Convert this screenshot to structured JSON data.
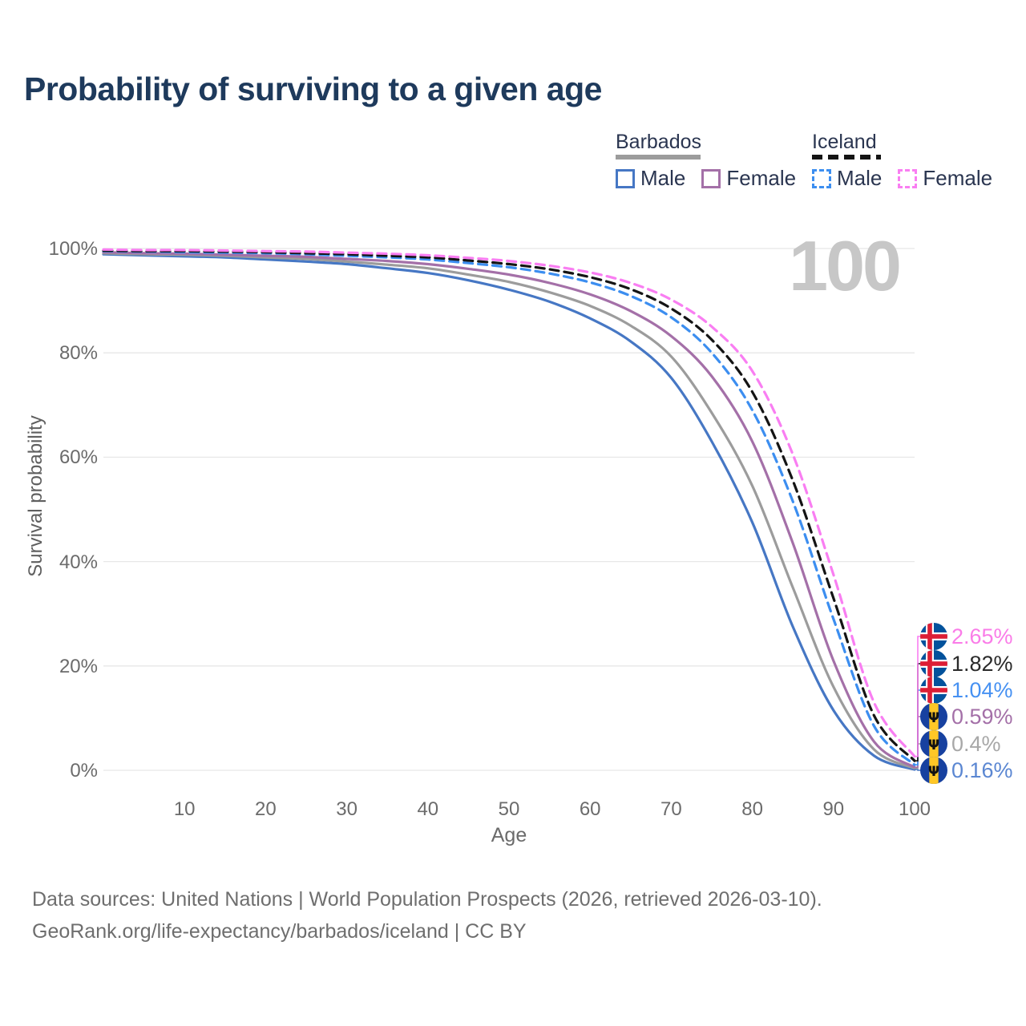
{
  "title": "Probability of surviving to a given age",
  "watermark_age": "100",
  "legend": {
    "groups": [
      {
        "label": "Barbados",
        "series_style": "solid",
        "underline_series_index": 1,
        "items": [
          {
            "label": "Male",
            "series_index": 0
          },
          {
            "label": "Female",
            "series_index": 2
          }
        ]
      },
      {
        "label": "Iceland",
        "series_style": "dashed",
        "underline_series_index": 4,
        "items": [
          {
            "label": "Male",
            "series_index": 3
          },
          {
            "label": "Female",
            "series_index": 5
          }
        ]
      }
    ]
  },
  "chart_data": {
    "type": "line",
    "title": "Probability of surviving to a given age",
    "xlabel": "Age",
    "ylabel": "Survival probability",
    "xlim": [
      0,
      100
    ],
    "ylim": [
      0,
      100
    ],
    "grid": "horizontal",
    "legend_position": "top-right",
    "x_ticks": [
      10,
      20,
      30,
      40,
      50,
      60,
      70,
      80,
      90,
      100
    ],
    "y_tick_labels": [
      "100%",
      "80%",
      "60%",
      "40%",
      "20%",
      "0%"
    ],
    "y_tick_values": [
      100,
      80,
      60,
      40,
      20,
      0
    ],
    "x": [
      0,
      5,
      10,
      15,
      20,
      25,
      30,
      35,
      40,
      45,
      50,
      55,
      60,
      65,
      70,
      75,
      80,
      85,
      90,
      95,
      100
    ],
    "series": [
      {
        "id": "barbados-male",
        "country": "Barbados",
        "sex": "Male",
        "style": "solid",
        "color": "#4677c4",
        "values": [
          98.9,
          98.7,
          98.5,
          98.3,
          97.9,
          97.5,
          97.0,
          96.2,
          95.3,
          93.9,
          92.1,
          89.8,
          86.6,
          82.2,
          75.2,
          63.0,
          47.5,
          27.5,
          11.5,
          2.8,
          0.16
        ],
        "end_label": "0.16%",
        "end_label_color": "#5b87d2",
        "flag": "barbados",
        "end_row": 5
      },
      {
        "id": "barbados-all",
        "country": "Barbados",
        "sex": "All",
        "style": "solid",
        "color": "#9c9c9c",
        "values": [
          99.1,
          98.9,
          98.8,
          98.6,
          98.3,
          98.0,
          97.5,
          96.9,
          96.2,
          95.0,
          93.6,
          91.6,
          89.0,
          85.2,
          79.3,
          68.5,
          54.5,
          35.0,
          16.0,
          4.0,
          0.4
        ],
        "end_label": "0.4%",
        "end_label_color": "#a8a8a8",
        "flag": "barbados",
        "end_row": 4
      },
      {
        "id": "barbados-female",
        "country": "Barbados",
        "sex": "Female",
        "style": "solid",
        "color": "#a470a8",
        "values": [
          99.3,
          99.1,
          99.0,
          98.8,
          98.6,
          98.4,
          98.0,
          97.6,
          97.0,
          96.1,
          95.0,
          93.4,
          91.2,
          88.0,
          83.2,
          75.5,
          63.0,
          43.5,
          21.0,
          5.5,
          0.59
        ],
        "end_label": "0.59%",
        "end_label_color": "#a470a8",
        "flag": "barbados",
        "end_row": 3
      },
      {
        "id": "iceland-male",
        "country": "Iceland",
        "sex": "Male",
        "style": "dashed",
        "color": "#3c8ef0",
        "values": [
          99.5,
          99.4,
          99.3,
          99.2,
          99.1,
          98.9,
          98.6,
          98.3,
          97.9,
          97.2,
          96.4,
          95.2,
          93.5,
          90.9,
          86.8,
          80.0,
          69.0,
          51.5,
          29.0,
          8.5,
          1.04
        ],
        "end_label": "1.04%",
        "end_label_color": "#4691f2",
        "flag": "iceland",
        "end_row": 2
      },
      {
        "id": "iceland-all",
        "country": "Iceland",
        "sex": "All",
        "style": "dashed",
        "color": "#141414",
        "values": [
          99.6,
          99.5,
          99.5,
          99.4,
          99.3,
          99.1,
          98.9,
          98.6,
          98.3,
          97.7,
          97.0,
          96.0,
          94.5,
          92.2,
          88.5,
          82.5,
          72.5,
          55.5,
          33.0,
          10.5,
          1.82
        ],
        "end_label": "1.82%",
        "end_label_color": "#2a2a2a",
        "flag": "iceland",
        "end_row": 1
      },
      {
        "id": "iceland-female",
        "country": "Iceland",
        "sex": "Female",
        "style": "dashed",
        "color": "#f97ef2",
        "values": [
          99.8,
          99.7,
          99.7,
          99.6,
          99.5,
          99.4,
          99.2,
          99.0,
          98.7,
          98.2,
          97.6,
          96.7,
          95.4,
          93.4,
          90.2,
          85.0,
          76.5,
          60.5,
          37.5,
          13.0,
          2.65
        ],
        "end_label": "2.65%",
        "end_label_color": "#fa7ce8",
        "flag": "iceland",
        "end_row": 0
      }
    ]
  },
  "flag_colors": {
    "iceland": {
      "blue": "#02529C",
      "white": "#ffffff",
      "red": "#DC1E35"
    },
    "barbados": {
      "blue": "#1741a0",
      "gold": "#FFC726",
      "trident": "#111111"
    }
  },
  "footer": {
    "line1": "Data sources: United Nations | World Population Prospects (2026, retrieved 2026-03-10).",
    "line2": "GeoRank.org/life-expectancy/barbados/iceland | CC BY"
  }
}
